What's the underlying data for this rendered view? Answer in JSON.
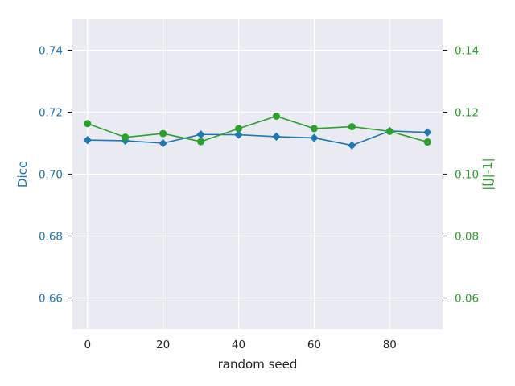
{
  "chart_data": {
    "type": "line",
    "xlabel": "random seed",
    "x": [
      0,
      10,
      20,
      30,
      40,
      50,
      60,
      70,
      80,
      90
    ],
    "x_ticks": [
      "0",
      "20",
      "40",
      "60",
      "80"
    ],
    "xlim": [
      -4,
      94
    ],
    "grid": true,
    "legend": "none",
    "left_axis": {
      "label": "Dice",
      "color": "#1f77b4",
      "ylim": [
        0.65,
        0.75
      ],
      "ticks": [
        "0.66",
        "0.68",
        "0.70",
        "0.72",
        "0.74"
      ]
    },
    "right_axis": {
      "label": "|[J|-1|",
      "color": "#2ca02c",
      "ylim": [
        0.05,
        0.15
      ],
      "ticks": [
        "0.06",
        "0.08",
        "0.10",
        "0.12",
        "0.14"
      ]
    },
    "series": [
      {
        "axis": "left",
        "marker": "diamond",
        "color": "#1f77b4",
        "values": [
          0.711,
          0.7108,
          0.71,
          0.7128,
          0.7127,
          0.7121,
          0.7117,
          0.7093,
          0.7139,
          0.7135
        ]
      },
      {
        "axis": "right",
        "marker": "circle",
        "color": "#2ca02c",
        "values": [
          0.1163,
          0.1119,
          0.1131,
          0.1105,
          0.1147,
          0.1187,
          0.1147,
          0.1153,
          0.1138,
          0.1104
        ]
      }
    ]
  }
}
